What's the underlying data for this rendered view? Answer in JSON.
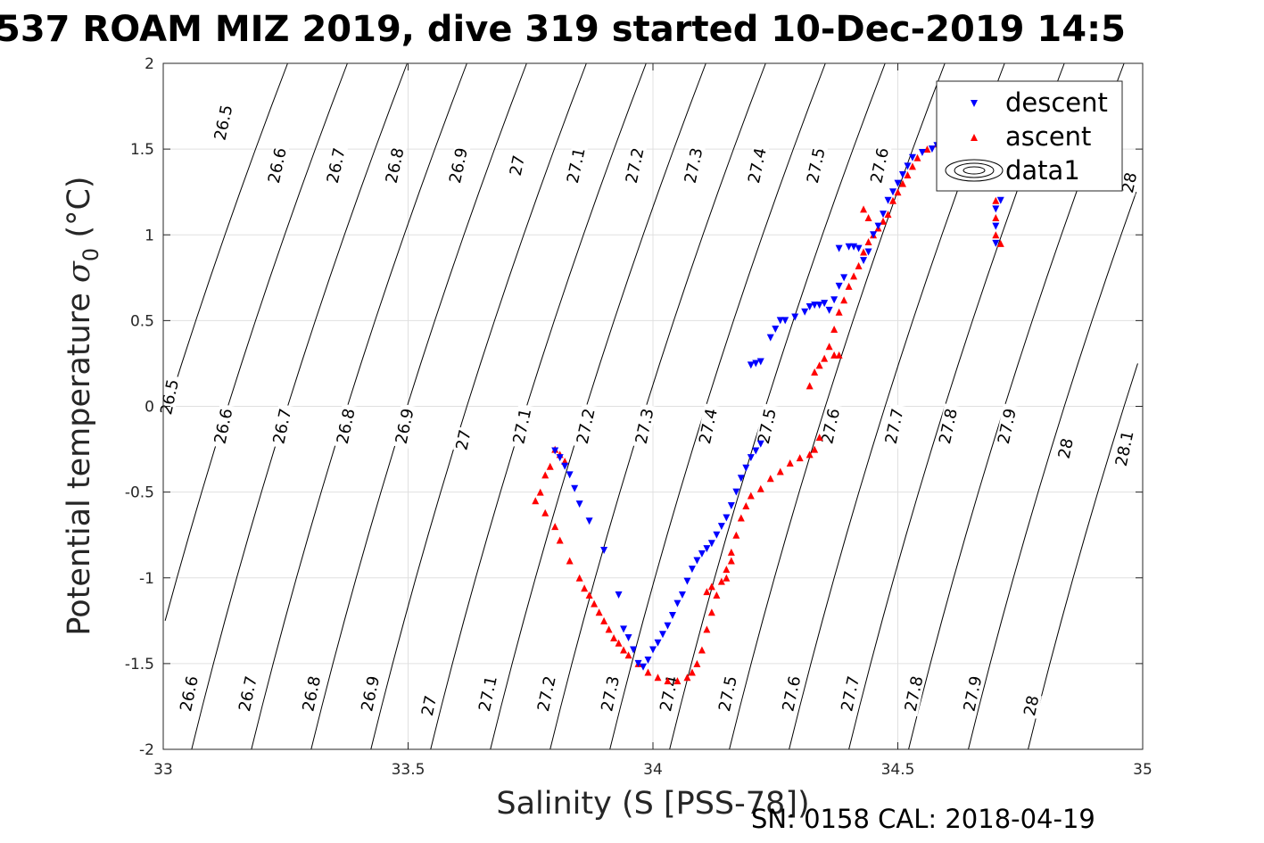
{
  "chart_data": {
    "type": "scatter",
    "title": "537 ROAM MIZ 2019, dive 319 started 10-Dec-2019 14:5",
    "xlabel": "Salinity (S [PSS-78])",
    "ylabel_main": "Potential temperature ",
    "ylabel_symbol": "σ",
    "ylabel_sub": "0",
    "ylabel_unit": " (°C)",
    "xlim": [
      33,
      35
    ],
    "ylim": [
      -2,
      2
    ],
    "xticks": [
      33,
      33.5,
      34,
      34.5,
      35
    ],
    "xtick_labels": [
      "33",
      "33.5",
      "34",
      "34.5",
      "35"
    ],
    "yticks": [
      -2,
      -1.5,
      -1,
      -0.5,
      0,
      0.5,
      1,
      1.5,
      2
    ],
    "ytick_labels": [
      "-2",
      "-1.5",
      "-1",
      "-0.5",
      "0",
      "0.5",
      "1",
      "1.5",
      "2"
    ],
    "grid": true,
    "legend_position": "top-right",
    "footer": "SN: 0158  CAL: 2018-04-19",
    "colors": {
      "descent": "#0000ff",
      "ascent": "#ff0000",
      "contour": "#000000",
      "grid": "#e0e0e0"
    },
    "contours": {
      "name": "data1",
      "levels": [
        "26.5",
        "26.6",
        "26.7",
        "26.8",
        "26.9",
        "27",
        "27.1",
        "27.2",
        "27.3",
        "27.4",
        "27.5",
        "27.6",
        "27.7",
        "27.8",
        "27.9",
        "28",
        "28.1"
      ],
      "labels": [
        {
          "text": "26.5",
          "x": 33.13,
          "y": 1.65
        },
        {
          "text": "26.6",
          "x": 33.24,
          "y": 1.4
        },
        {
          "text": "26.7",
          "x": 33.36,
          "y": 1.4
        },
        {
          "text": "26.8",
          "x": 33.48,
          "y": 1.4
        },
        {
          "text": "26.9",
          "x": 33.61,
          "y": 1.4
        },
        {
          "text": "27",
          "x": 33.73,
          "y": 1.4
        },
        {
          "text": "27.1",
          "x": 33.85,
          "y": 1.4
        },
        {
          "text": "27.2",
          "x": 33.97,
          "y": 1.4
        },
        {
          "text": "27.3",
          "x": 34.09,
          "y": 1.4
        },
        {
          "text": "27.4",
          "x": 34.22,
          "y": 1.4
        },
        {
          "text": "27.5",
          "x": 34.34,
          "y": 1.4
        },
        {
          "text": "27.6",
          "x": 34.47,
          "y": 1.4
        },
        {
          "text": "28",
          "x": 34.98,
          "y": 1.3
        },
        {
          "text": "26.5",
          "x": 33.02,
          "y": 0.05
        },
        {
          "text": "26.6",
          "x": 33.13,
          "y": -0.12
        },
        {
          "text": "26.7",
          "x": 33.25,
          "y": -0.12
        },
        {
          "text": "26.8",
          "x": 33.38,
          "y": -0.12
        },
        {
          "text": "26.9",
          "x": 33.5,
          "y": -0.12
        },
        {
          "text": "27",
          "x": 33.62,
          "y": -0.2
        },
        {
          "text": "27.1",
          "x": 33.74,
          "y": -0.12
        },
        {
          "text": "27.2",
          "x": 33.87,
          "y": -0.12
        },
        {
          "text": "27.3",
          "x": 33.99,
          "y": -0.12
        },
        {
          "text": "27.4",
          "x": 34.12,
          "y": -0.12
        },
        {
          "text": "27.5",
          "x": 34.24,
          "y": -0.12
        },
        {
          "text": "27.6",
          "x": 34.37,
          "y": -0.12
        },
        {
          "text": "27.7",
          "x": 34.5,
          "y": -0.12
        },
        {
          "text": "27.8",
          "x": 34.61,
          "y": -0.12
        },
        {
          "text": "27.9",
          "x": 34.73,
          "y": -0.12
        },
        {
          "text": "28",
          "x": 34.85,
          "y": -0.25
        },
        {
          "text": "28.1",
          "x": 34.97,
          "y": -0.25
        },
        {
          "text": "26.6",
          "x": 33.06,
          "y": -1.68
        },
        {
          "text": "26.7",
          "x": 33.18,
          "y": -1.68
        },
        {
          "text": "26.8",
          "x": 33.31,
          "y": -1.68
        },
        {
          "text": "26.9",
          "x": 33.43,
          "y": -1.68
        },
        {
          "text": "27",
          "x": 33.55,
          "y": -1.75
        },
        {
          "text": "27.1",
          "x": 33.67,
          "y": -1.68
        },
        {
          "text": "27.2",
          "x": 33.79,
          "y": -1.68
        },
        {
          "text": "27.3",
          "x": 33.92,
          "y": -1.68
        },
        {
          "text": "27.4",
          "x": 34.04,
          "y": -1.68
        },
        {
          "text": "27.5",
          "x": 34.16,
          "y": -1.68
        },
        {
          "text": "27.6",
          "x": 34.29,
          "y": -1.68
        },
        {
          "text": "27.7",
          "x": 34.41,
          "y": -1.68
        },
        {
          "text": "27.8",
          "x": 34.54,
          "y": -1.68
        },
        {
          "text": "27.9",
          "x": 34.66,
          "y": -1.68
        },
        {
          "text": "28",
          "x": 34.78,
          "y": -1.75
        }
      ]
    },
    "series": [
      {
        "name": "descent",
        "marker": "triangle-down",
        "points": [
          [
            34.2,
            0.24
          ],
          [
            34.21,
            0.25
          ],
          [
            34.22,
            0.26
          ],
          [
            34.24,
            0.4
          ],
          [
            34.25,
            0.45
          ],
          [
            34.26,
            0.5
          ],
          [
            34.27,
            0.5
          ],
          [
            34.29,
            0.52
          ],
          [
            34.31,
            0.55
          ],
          [
            34.32,
            0.58
          ],
          [
            34.33,
            0.59
          ],
          [
            34.34,
            0.59
          ],
          [
            34.35,
            0.6
          ],
          [
            34.36,
            0.56
          ],
          [
            34.37,
            0.62
          ],
          [
            34.38,
            0.7
          ],
          [
            34.39,
            0.75
          ],
          [
            34.38,
            0.92
          ],
          [
            34.4,
            0.93
          ],
          [
            34.41,
            0.93
          ],
          [
            34.42,
            0.92
          ],
          [
            34.43,
            0.85
          ],
          [
            34.44,
            0.9
          ],
          [
            34.45,
            1.0
          ],
          [
            34.46,
            1.05
          ],
          [
            34.47,
            1.12
          ],
          [
            34.48,
            1.2
          ],
          [
            34.49,
            1.25
          ],
          [
            34.5,
            1.3
          ],
          [
            34.51,
            1.35
          ],
          [
            34.52,
            1.4
          ],
          [
            34.53,
            1.45
          ],
          [
            34.55,
            1.48
          ],
          [
            34.57,
            1.5
          ],
          [
            34.58,
            1.52
          ],
          [
            34.6,
            1.53
          ],
          [
            34.7,
            1.15
          ],
          [
            34.7,
            1.05
          ],
          [
            34.7,
            0.95
          ],
          [
            34.71,
            1.2
          ],
          [
            33.8,
            -0.26
          ],
          [
            33.81,
            -0.3
          ],
          [
            33.82,
            -0.35
          ],
          [
            33.83,
            -0.4
          ],
          [
            33.84,
            -0.48
          ],
          [
            33.85,
            -0.57
          ],
          [
            33.87,
            -0.67
          ],
          [
            33.9,
            -0.84
          ],
          [
            33.93,
            -1.1
          ],
          [
            33.94,
            -1.3
          ],
          [
            33.95,
            -1.35
          ],
          [
            33.96,
            -1.42
          ],
          [
            33.97,
            -1.5
          ],
          [
            33.98,
            -1.52
          ],
          [
            33.99,
            -1.48
          ],
          [
            34.0,
            -1.42
          ],
          [
            34.01,
            -1.38
          ],
          [
            34.02,
            -1.33
          ],
          [
            34.03,
            -1.28
          ],
          [
            34.04,
            -1.22
          ],
          [
            34.05,
            -1.15
          ],
          [
            34.06,
            -1.1
          ],
          [
            34.07,
            -1.02
          ],
          [
            34.08,
            -0.95
          ],
          [
            34.09,
            -0.9
          ],
          [
            34.1,
            -0.86
          ],
          [
            34.11,
            -0.83
          ],
          [
            34.12,
            -0.8
          ],
          [
            34.13,
            -0.75
          ],
          [
            34.14,
            -0.7
          ],
          [
            34.15,
            -0.65
          ],
          [
            34.16,
            -0.58
          ],
          [
            34.17,
            -0.5
          ],
          [
            34.18,
            -0.42
          ],
          [
            34.19,
            -0.36
          ],
          [
            34.2,
            -0.3
          ],
          [
            34.21,
            -0.26
          ],
          [
            34.22,
            -0.22
          ]
        ]
      },
      {
        "name": "ascent",
        "marker": "triangle-up",
        "points": [
          [
            34.32,
            0.12
          ],
          [
            34.33,
            0.2
          ],
          [
            34.34,
            0.24
          ],
          [
            34.35,
            0.28
          ],
          [
            34.37,
            0.3
          ],
          [
            34.38,
            0.3
          ],
          [
            34.36,
            0.35
          ],
          [
            34.37,
            0.45
          ],
          [
            34.38,
            0.55
          ],
          [
            34.39,
            0.62
          ],
          [
            34.4,
            0.7
          ],
          [
            34.41,
            0.76
          ],
          [
            34.42,
            0.82
          ],
          [
            34.43,
            0.9
          ],
          [
            34.44,
            0.96
          ],
          [
            34.45,
            1.0
          ],
          [
            34.46,
            1.04
          ],
          [
            34.47,
            1.08
          ],
          [
            34.48,
            1.12
          ],
          [
            34.49,
            1.2
          ],
          [
            34.5,
            1.25
          ],
          [
            34.51,
            1.3
          ],
          [
            34.52,
            1.35
          ],
          [
            34.53,
            1.4
          ],
          [
            34.54,
            1.45
          ],
          [
            34.56,
            1.5
          ],
          [
            34.58,
            1.53
          ],
          [
            34.59,
            1.55
          ],
          [
            34.43,
            1.15
          ],
          [
            34.44,
            1.1
          ],
          [
            34.7,
            1.0
          ],
          [
            34.7,
            1.1
          ],
          [
            34.7,
            1.2
          ],
          [
            34.71,
            0.95
          ],
          [
            33.8,
            -0.25
          ],
          [
            33.81,
            -0.28
          ],
          [
            33.82,
            -0.32
          ],
          [
            33.79,
            -0.35
          ],
          [
            33.78,
            -0.4
          ],
          [
            33.77,
            -0.5
          ],
          [
            33.76,
            -0.55
          ],
          [
            33.78,
            -0.62
          ],
          [
            33.8,
            -0.7
          ],
          [
            33.81,
            -0.78
          ],
          [
            33.83,
            -0.9
          ],
          [
            33.85,
            -1.0
          ],
          [
            33.86,
            -1.06
          ],
          [
            33.87,
            -1.1
          ],
          [
            33.88,
            -1.15
          ],
          [
            33.89,
            -1.2
          ],
          [
            33.9,
            -1.25
          ],
          [
            33.91,
            -1.3
          ],
          [
            33.92,
            -1.35
          ],
          [
            33.93,
            -1.38
          ],
          [
            33.94,
            -1.42
          ],
          [
            33.95,
            -1.45
          ],
          [
            33.97,
            -1.5
          ],
          [
            33.99,
            -1.55
          ],
          [
            34.01,
            -1.58
          ],
          [
            34.03,
            -1.6
          ],
          [
            34.05,
            -1.6
          ],
          [
            34.07,
            -1.58
          ],
          [
            34.08,
            -1.55
          ],
          [
            34.09,
            -1.5
          ],
          [
            34.1,
            -1.42
          ],
          [
            34.11,
            -1.3
          ],
          [
            34.12,
            -1.2
          ],
          [
            34.13,
            -1.1
          ],
          [
            34.14,
            -1.02
          ],
          [
            34.15,
            -0.95
          ],
          [
            34.16,
            -0.85
          ],
          [
            34.17,
            -0.75
          ],
          [
            34.18,
            -0.65
          ],
          [
            34.19,
            -0.58
          ],
          [
            34.2,
            -0.52
          ],
          [
            34.22,
            -0.48
          ],
          [
            34.24,
            -0.42
          ],
          [
            34.26,
            -0.38
          ],
          [
            34.28,
            -0.33
          ],
          [
            34.3,
            -0.3
          ],
          [
            34.32,
            -0.28
          ],
          [
            34.33,
            -0.25
          ],
          [
            34.34,
            -0.18
          ],
          [
            34.15,
            -1.0
          ],
          [
            34.16,
            -0.9
          ],
          [
            34.12,
            -1.05
          ],
          [
            34.11,
            -1.08
          ]
        ]
      }
    ]
  }
}
